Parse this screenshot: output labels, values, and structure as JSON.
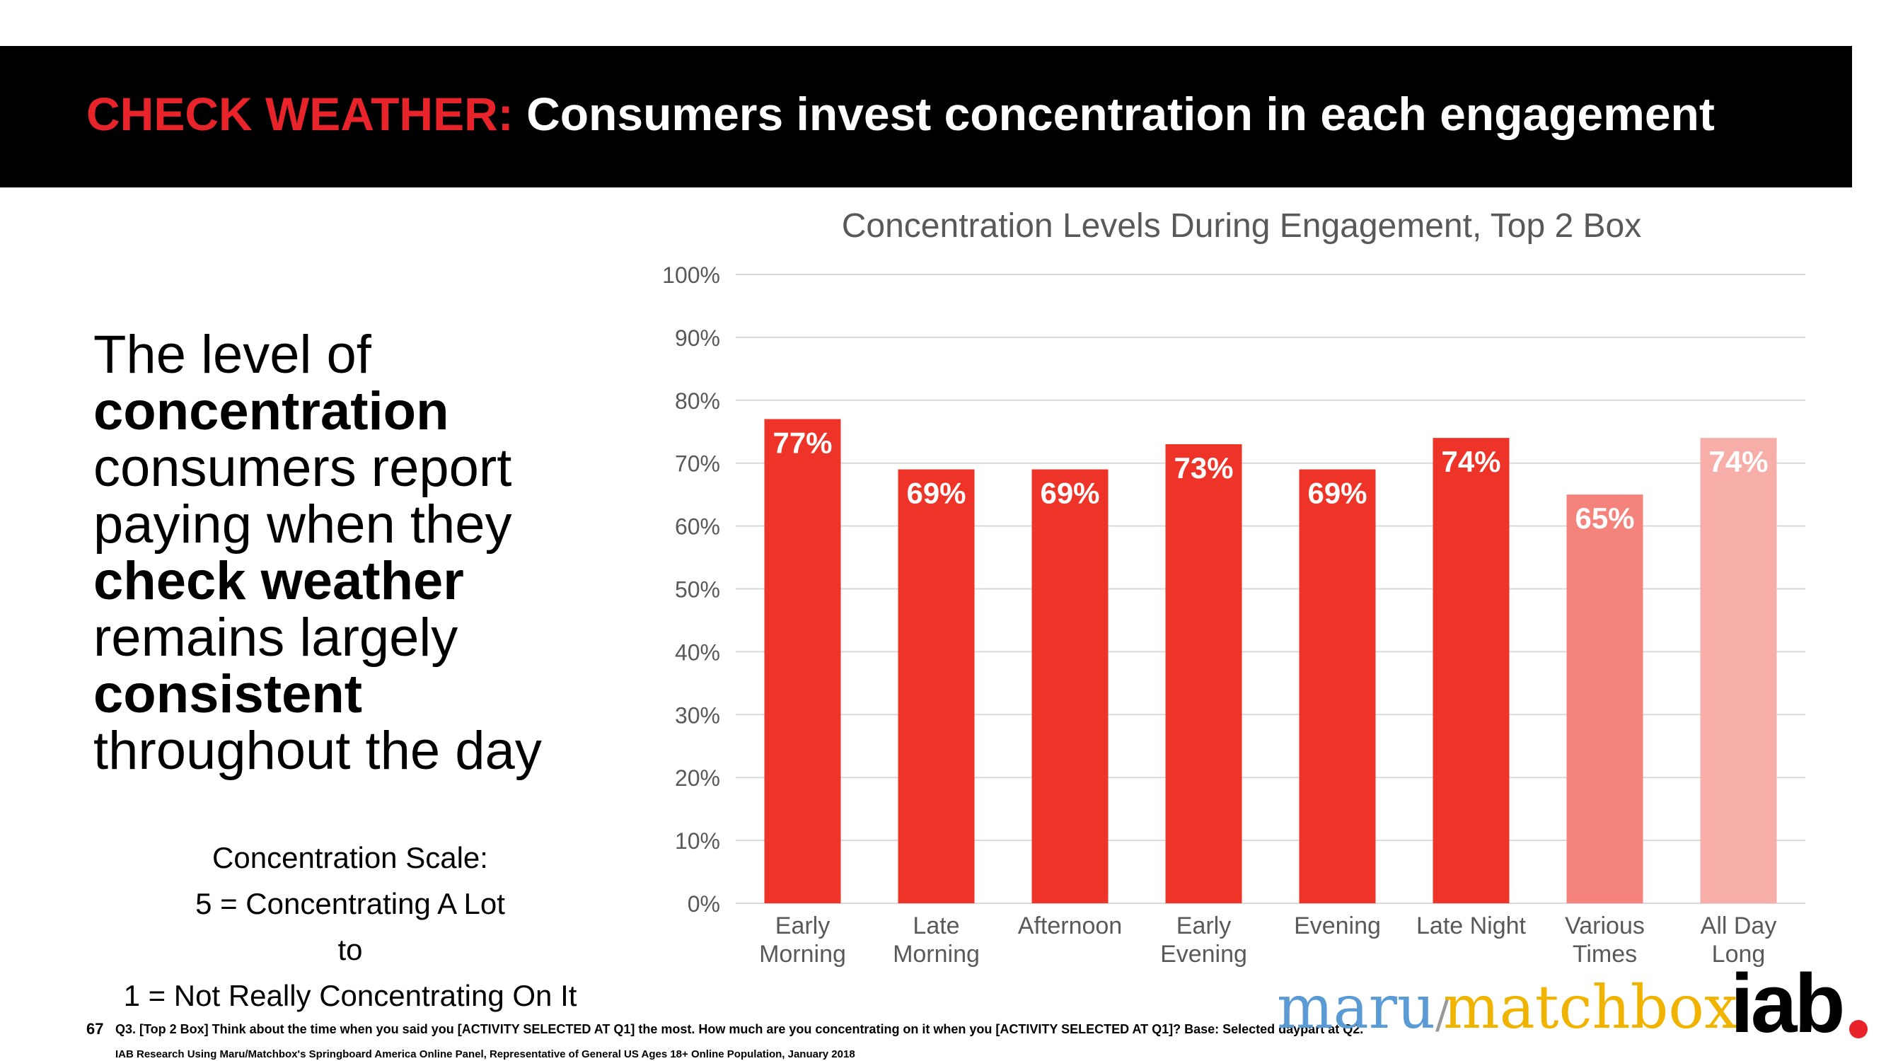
{
  "header": {
    "accent_title": "CHECK WEATHER:",
    "title": "Consumers invest concentration in each engagement"
  },
  "headline": {
    "lines": [
      "The level of",
      "concentration",
      "consumers report",
      "paying when they",
      "check weather",
      "remains largely",
      "consistent",
      "throughout the day"
    ]
  },
  "scale_note": {
    "line1": "Concentration Scale:",
    "line2": "5 = Concentrating A Lot",
    "line3": "to",
    "line4": "1 = Not Really Concentrating On It"
  },
  "footer": {
    "page_number": "67",
    "question": "Q3. [Top 2 Box] Think about the time when you said you [ACTIVITY SELECTED AT Q1] the most.  How much are you concentrating on it when you [ACTIVITY SELECTED AT Q1]? Base: Selected daypart at Q2.",
    "source": "IAB Research Using Maru/Matchbox's Springboard America Online Panel, Representative of General US Ages 18+ Online Population, January 2018"
  },
  "logos": {
    "maru": "maru",
    "slash": "/",
    "matchbox": "matchbox",
    "iab": "iab"
  },
  "colors": {
    "accent_red": "#e8232a",
    "bar_red": "#ee3428",
    "bar_various": "#f4837b",
    "bar_allday": "#f7aea9",
    "grid": "#d9d9d9",
    "axis_text": "#595959"
  },
  "chart_data": {
    "type": "bar",
    "title": "Concentration Levels During Engagement, Top 2 Box",
    "categories": [
      [
        "Early",
        "Morning"
      ],
      [
        "Late",
        "Morning"
      ],
      [
        "Afternoon"
      ],
      [
        "Early",
        "Evening"
      ],
      [
        "Evening"
      ],
      [
        "Late Night"
      ],
      [
        "Various",
        "Times"
      ],
      [
        "All Day",
        "Long"
      ]
    ],
    "values": [
      77,
      69,
      69,
      73,
      69,
      74,
      65,
      74
    ],
    "data_labels": [
      "77%",
      "69%",
      "69%",
      "73%",
      "69%",
      "74%",
      "65%",
      "74%"
    ],
    "bar_colors": [
      "#ee3428",
      "#ee3428",
      "#ee3428",
      "#ee3428",
      "#ee3428",
      "#ee3428",
      "#f4837b",
      "#f7aea9"
    ],
    "ylim": [
      0,
      100
    ],
    "yticks": [
      "0%",
      "10%",
      "20%",
      "30%",
      "40%",
      "50%",
      "60%",
      "70%",
      "80%",
      "90%",
      "100%"
    ],
    "xlabel": "",
    "ylabel": "",
    "grid": true,
    "legend": "none"
  }
}
